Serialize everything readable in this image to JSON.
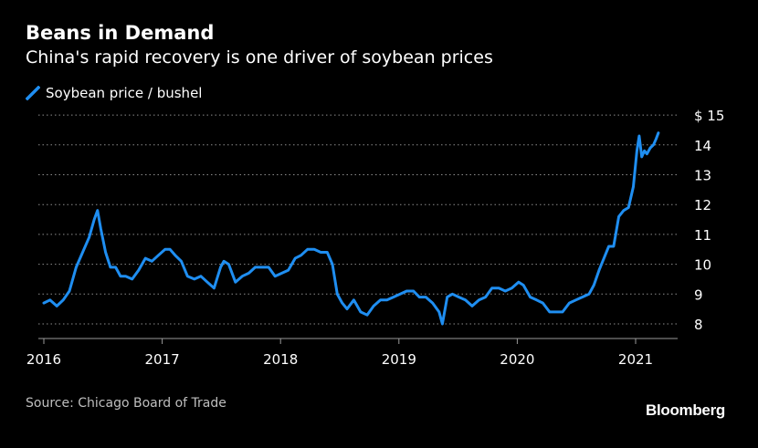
{
  "header": {
    "title": "Beans in Demand",
    "subtitle": "China's rapid recovery is one driver of soybean prices"
  },
  "footer": {
    "source": "Source: Chicago Board of Trade",
    "brand": "Bloomberg"
  },
  "colors": {
    "background": "#000000",
    "series": "#1f8ef1",
    "grid": "#8c8c8c",
    "text": "#ffffff"
  },
  "chart_data": {
    "type": "line",
    "title": "Beans in Demand",
    "subtitle": "China's rapid recovery is one driver of soybean prices",
    "xlabel": "",
    "ylabel": "",
    "x_ticks": [
      "2016",
      "2017",
      "2018",
      "2019",
      "2020",
      "2021"
    ],
    "y_ticks": [
      8,
      9,
      10,
      11,
      12,
      13,
      14,
      15
    ],
    "y_tick_labels": [
      "8",
      "9",
      "10",
      "11",
      "12",
      "13",
      "14",
      "$ 15"
    ],
    "xlim": [
      "2016-01-01",
      "2021-05-01"
    ],
    "ylim": [
      7.6,
      15.1
    ],
    "grid": "horizontal dotted",
    "legend": "top-left",
    "series": [
      {
        "name": "Soybean price / bushel",
        "color": "#1f8ef1",
        "x": [
          "2016-01-01",
          "2016-01-20",
          "2016-02-10",
          "2016-03-01",
          "2016-03-20",
          "2016-04-10",
          "2016-04-30",
          "2016-05-20",
          "2016-06-05",
          "2016-06-15",
          "2016-06-25",
          "2016-07-10",
          "2016-07-25",
          "2016-08-10",
          "2016-08-25",
          "2016-09-10",
          "2016-09-30",
          "2016-10-20",
          "2016-11-10",
          "2016-11-30",
          "2016-12-20",
          "2017-01-10",
          "2017-01-25",
          "2017-02-10",
          "2017-03-01",
          "2017-03-20",
          "2017-04-10",
          "2017-04-30",
          "2017-05-20",
          "2017-06-10",
          "2017-06-30",
          "2017-07-10",
          "2017-07-25",
          "2017-08-15",
          "2017-09-05",
          "2017-09-25",
          "2017-10-15",
          "2017-11-05",
          "2017-11-25",
          "2017-12-15",
          "2018-01-05",
          "2018-01-25",
          "2018-02-15",
          "2018-03-05",
          "2018-03-25",
          "2018-04-15",
          "2018-05-05",
          "2018-05-25",
          "2018-06-10",
          "2018-06-25",
          "2018-07-10",
          "2018-07-25",
          "2018-08-15",
          "2018-09-05",
          "2018-09-25",
          "2018-10-15",
          "2018-11-05",
          "2018-11-25",
          "2018-12-15",
          "2019-01-05",
          "2019-01-25",
          "2019-02-15",
          "2019-03-05",
          "2019-03-25",
          "2019-04-15",
          "2019-05-05",
          "2019-05-15",
          "2019-05-30",
          "2019-06-15",
          "2019-07-05",
          "2019-07-25",
          "2019-08-15",
          "2019-09-05",
          "2019-09-25",
          "2019-10-15",
          "2019-11-05",
          "2019-11-25",
          "2019-12-15",
          "2020-01-05",
          "2020-01-20",
          "2020-02-10",
          "2020-03-01",
          "2020-03-20",
          "2020-04-10",
          "2020-04-30",
          "2020-05-20",
          "2020-06-10",
          "2020-06-30",
          "2020-07-20",
          "2020-08-10",
          "2020-08-25",
          "2020-09-10",
          "2020-09-25",
          "2020-10-10",
          "2020-10-25",
          "2020-11-10",
          "2020-11-25",
          "2020-12-10",
          "2020-12-25",
          "2021-01-05",
          "2021-01-12",
          "2021-01-20",
          "2021-01-28",
          "2021-02-05",
          "2021-02-15",
          "2021-02-25",
          "2021-03-05",
          "2021-03-12"
        ],
        "y": [
          8.7,
          8.8,
          8.6,
          8.8,
          9.1,
          9.9,
          10.4,
          10.9,
          11.5,
          11.8,
          11.2,
          10.4,
          9.9,
          9.9,
          9.6,
          9.6,
          9.5,
          9.8,
          10.2,
          10.1,
          10.3,
          10.5,
          10.5,
          10.3,
          10.1,
          9.6,
          9.5,
          9.6,
          9.4,
          9.2,
          9.9,
          10.1,
          10.0,
          9.4,
          9.6,
          9.7,
          9.9,
          9.9,
          9.9,
          9.6,
          9.7,
          9.8,
          10.2,
          10.3,
          10.5,
          10.5,
          10.4,
          10.4,
          10.0,
          9.0,
          8.7,
          8.5,
          8.8,
          8.4,
          8.3,
          8.6,
          8.8,
          8.8,
          8.9,
          9.0,
          9.1,
          9.1,
          8.9,
          8.9,
          8.7,
          8.4,
          8.0,
          8.9,
          9.0,
          8.9,
          8.8,
          8.6,
          8.8,
          8.9,
          9.2,
          9.2,
          9.1,
          9.2,
          9.4,
          9.3,
          8.9,
          8.8,
          8.7,
          8.4,
          8.4,
          8.4,
          8.7,
          8.8,
          8.9,
          9.0,
          9.3,
          9.8,
          10.2,
          10.6,
          10.6,
          11.6,
          11.8,
          11.9,
          12.6,
          13.8,
          14.3,
          13.6,
          13.8,
          13.7,
          13.9,
          14.0,
          14.2,
          14.4
        ]
      }
    ]
  }
}
